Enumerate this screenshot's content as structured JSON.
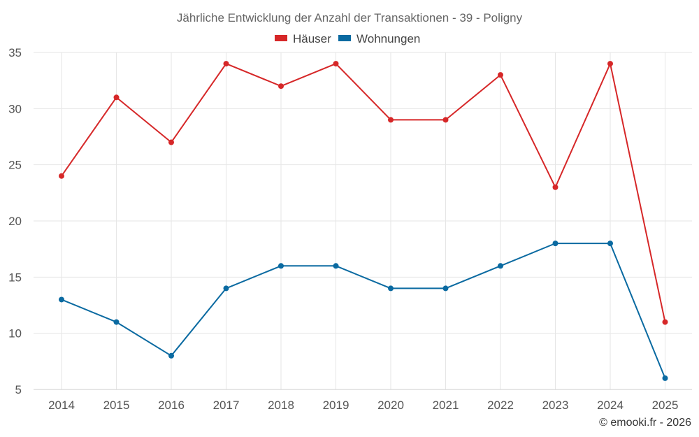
{
  "chart_data": {
    "type": "line",
    "title": "Jährliche Entwicklung der Anzahl der Transaktionen - 39 - Poligny",
    "categories": [
      "2014",
      "2015",
      "2016",
      "2017",
      "2018",
      "2019",
      "2020",
      "2021",
      "2022",
      "2023",
      "2024",
      "2025"
    ],
    "series": [
      {
        "name": "Häuser",
        "color": "#d62728",
        "values": [
          24,
          31,
          27,
          34,
          32,
          34,
          29,
          29,
          33,
          23,
          34,
          11
        ]
      },
      {
        "name": "Wohnungen",
        "color": "#0a6aa1",
        "values": [
          13,
          11,
          8,
          14,
          16,
          16,
          14,
          14,
          16,
          18,
          18,
          6
        ]
      }
    ],
    "ylim": [
      5,
      35
    ],
    "yticks": [
      "5",
      "10",
      "15",
      "20",
      "25",
      "30",
      "35"
    ],
    "grid": true,
    "legend_position": "top-center"
  },
  "credit": "© emooki.fr - 2026"
}
